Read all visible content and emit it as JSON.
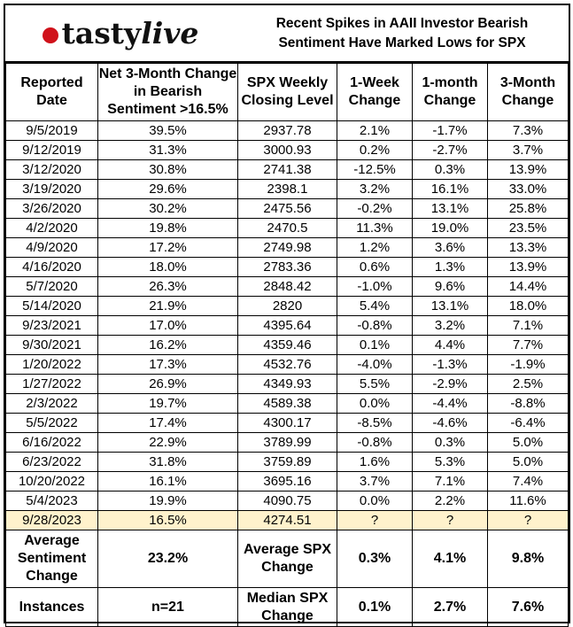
{
  "logo": {
    "brand": "tasty",
    "brand2": "live"
  },
  "title": [
    "Recent Spikes in AAII Investor Bearish",
    "Sentiment Have Marked Lows for SPX"
  ],
  "headers": [
    "Reported Date",
    "Net 3-Month Change in Bearish Sentiment >16.5%",
    "SPX Weekly Closing Level",
    "1-Week Change",
    "1-month Change",
    "3-Month Change"
  ],
  "rows": [
    [
      "9/5/2019",
      "39.5%",
      "2937.78",
      "2.1%",
      "-1.7%",
      "7.3%"
    ],
    [
      "9/12/2019",
      "31.3%",
      "3000.93",
      "0.2%",
      "-2.7%",
      "3.7%"
    ],
    [
      "3/12/2020",
      "30.8%",
      "2741.38",
      "-12.5%",
      "0.3%",
      "13.9%"
    ],
    [
      "3/19/2020",
      "29.6%",
      "2398.1",
      "3.2%",
      "16.1%",
      "33.0%"
    ],
    [
      "3/26/2020",
      "30.2%",
      "2475.56",
      "-0.2%",
      "13.1%",
      "25.8%"
    ],
    [
      "4/2/2020",
      "19.8%",
      "2470.5",
      "11.3%",
      "19.0%",
      "23.5%"
    ],
    [
      "4/9/2020",
      "17.2%",
      "2749.98",
      "1.2%",
      "3.6%",
      "13.3%"
    ],
    [
      "4/16/2020",
      "18.0%",
      "2783.36",
      "0.6%",
      "1.3%",
      "13.9%"
    ],
    [
      "5/7/2020",
      "26.3%",
      "2848.42",
      "-1.0%",
      "9.6%",
      "14.4%"
    ],
    [
      "5/14/2020",
      "21.9%",
      "2820",
      "5.4%",
      "13.1%",
      "18.0%"
    ],
    [
      "9/23/2021",
      "17.0%",
      "4395.64",
      "-0.8%",
      "3.2%",
      "7.1%"
    ],
    [
      "9/30/2021",
      "16.2%",
      "4359.46",
      "0.1%",
      "4.4%",
      "7.7%"
    ],
    [
      "1/20/2022",
      "17.3%",
      "4532.76",
      "-4.0%",
      "-1.3%",
      "-1.9%"
    ],
    [
      "1/27/2022",
      "26.9%",
      "4349.93",
      "5.5%",
      "-2.9%",
      "2.5%"
    ],
    [
      "2/3/2022",
      "19.7%",
      "4589.38",
      "0.0%",
      "-4.4%",
      "-8.8%"
    ],
    [
      "5/5/2022",
      "17.4%",
      "4300.17",
      "-8.5%",
      "-4.6%",
      "-6.4%"
    ],
    [
      "6/16/2022",
      "22.9%",
      "3789.99",
      "-0.8%",
      "0.3%",
      "5.0%"
    ],
    [
      "6/23/2022",
      "31.8%",
      "3759.89",
      "1.6%",
      "5.3%",
      "5.0%"
    ],
    [
      "10/20/2022",
      "16.1%",
      "3695.16",
      "3.7%",
      "7.1%",
      "7.4%"
    ],
    [
      "5/4/2023",
      "19.9%",
      "4090.75",
      "0.0%",
      "2.2%",
      "11.6%"
    ],
    [
      "9/28/2023",
      "16.5%",
      "4274.51",
      "?",
      "?",
      "?"
    ]
  ],
  "highlight_color": "#fff2cc",
  "summary": [
    [
      "Average Sentiment Change",
      "23.2%",
      "Average SPX Change",
      "0.3%",
      "4.1%",
      "9.8%"
    ],
    [
      "Instances",
      "n=21",
      "Median SPX Change",
      "0.1%",
      "2.7%",
      "7.6%"
    ]
  ]
}
